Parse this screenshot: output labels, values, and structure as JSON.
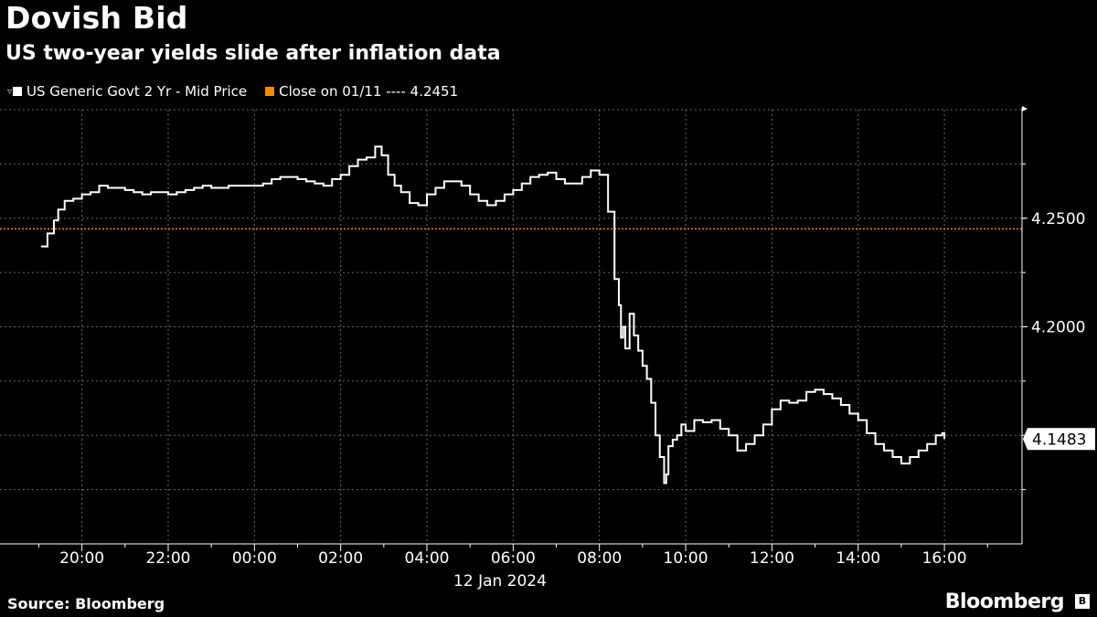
{
  "header": {
    "title": "Dovish Bid",
    "subtitle": "US two-year yields slide after inflation data"
  },
  "footer": {
    "source": "Source: Bloomberg",
    "brand": "Bloomberg"
  },
  "colors": {
    "background": "#000000",
    "series": "#ffffff",
    "close_line": "#f28c00",
    "grid": "#666666"
  },
  "chart_data": {
    "type": "line",
    "title": "Dovish Bid",
    "subtitle": "US two-year yields slide after inflation data",
    "xlabel": "12 Jan 2024",
    "ylabel": "",
    "x_tick_labels": [
      "20:00",
      "22:00",
      "00:00",
      "02:00",
      "04:00",
      "06:00",
      "08:00",
      "10:00",
      "12:00",
      "14:00",
      "16:00"
    ],
    "x_tick_hours": [
      -4,
      -2,
      0,
      2,
      4,
      6,
      8,
      10,
      12,
      14,
      16
    ],
    "x_range_hours": [
      -5.9,
      17.8
    ],
    "y_tick_labels": [
      "4.2500",
      "4.2000"
    ],
    "y_ticks": [
      4.25,
      4.2
    ],
    "ylim": [
      4.1,
      4.3
    ],
    "grid": true,
    "legend_position": "top-left",
    "last_value_label": "4.1483",
    "last_value": 4.1483,
    "reference_lines": [
      {
        "name": "Close on 01/11 ---- 4.2451",
        "value": 4.2451
      }
    ],
    "series": [
      {
        "name": "US Generic Govt 2 Yr - Mid Price",
        "x_hours": [
          -4.95,
          -4.8,
          -4.65,
          -4.55,
          -4.4,
          -4.2,
          -4.0,
          -3.8,
          -3.6,
          -3.4,
          -3.2,
          -3.0,
          -2.8,
          -2.6,
          -2.4,
          -2.2,
          -2.0,
          -1.8,
          -1.6,
          -1.4,
          -1.2,
          -1.0,
          -0.8,
          -0.6,
          -0.4,
          -0.2,
          0.0,
          0.2,
          0.4,
          0.6,
          0.8,
          1.0,
          1.2,
          1.4,
          1.6,
          1.8,
          2.0,
          2.2,
          2.4,
          2.6,
          2.8,
          2.95,
          3.1,
          3.25,
          3.4,
          3.6,
          3.8,
          4.0,
          4.2,
          4.4,
          4.6,
          4.8,
          5.0,
          5.2,
          5.4,
          5.6,
          5.8,
          6.0,
          6.2,
          6.4,
          6.6,
          6.8,
          7.0,
          7.2,
          7.4,
          7.6,
          7.8,
          8.0,
          8.2,
          8.35,
          8.45,
          8.5,
          8.55,
          8.6,
          8.7,
          8.8,
          8.9,
          9.0,
          9.1,
          9.2,
          9.3,
          9.4,
          9.5,
          9.55,
          9.6,
          9.7,
          9.8,
          9.9,
          10.0,
          10.2,
          10.4,
          10.6,
          10.8,
          11.0,
          11.2,
          11.4,
          11.6,
          11.8,
          12.0,
          12.2,
          12.4,
          12.6,
          12.8,
          13.0,
          13.2,
          13.4,
          13.6,
          13.8,
          14.0,
          14.2,
          14.4,
          14.6,
          14.8,
          15.0,
          15.2,
          15.4,
          15.6,
          15.8,
          15.95,
          16.0
        ],
        "values": [
          4.237,
          4.243,
          4.249,
          4.254,
          4.258,
          4.259,
          4.261,
          4.262,
          4.265,
          4.264,
          4.264,
          4.263,
          4.262,
          4.261,
          4.262,
          4.262,
          4.261,
          4.262,
          4.263,
          4.264,
          4.265,
          4.264,
          4.264,
          4.265,
          4.265,
          4.265,
          4.265,
          4.266,
          4.268,
          4.269,
          4.269,
          4.268,
          4.267,
          4.266,
          4.265,
          4.268,
          4.27,
          4.274,
          4.277,
          4.278,
          4.283,
          4.279,
          4.27,
          4.265,
          4.262,
          4.257,
          4.256,
          4.261,
          4.264,
          4.267,
          4.267,
          4.265,
          4.261,
          4.258,
          4.256,
          4.258,
          4.261,
          4.263,
          4.266,
          4.269,
          4.27,
          4.271,
          4.268,
          4.266,
          4.266,
          4.269,
          4.272,
          4.27,
          4.253,
          4.222,
          4.21,
          4.195,
          4.2,
          4.19,
          4.206,
          4.196,
          4.189,
          4.182,
          4.176,
          4.165,
          4.15,
          4.14,
          4.128,
          4.132,
          4.145,
          4.148,
          4.15,
          4.155,
          4.152,
          4.157,
          4.156,
          4.157,
          4.153,
          4.15,
          4.143,
          4.146,
          4.15,
          4.155,
          4.162,
          4.166,
          4.165,
          4.166,
          4.17,
          4.171,
          4.169,
          4.167,
          4.164,
          4.16,
          4.157,
          4.151,
          4.146,
          4.143,
          4.14,
          4.137,
          4.14,
          4.143,
          4.146,
          4.15,
          4.151,
          4.1483
        ]
      }
    ]
  }
}
